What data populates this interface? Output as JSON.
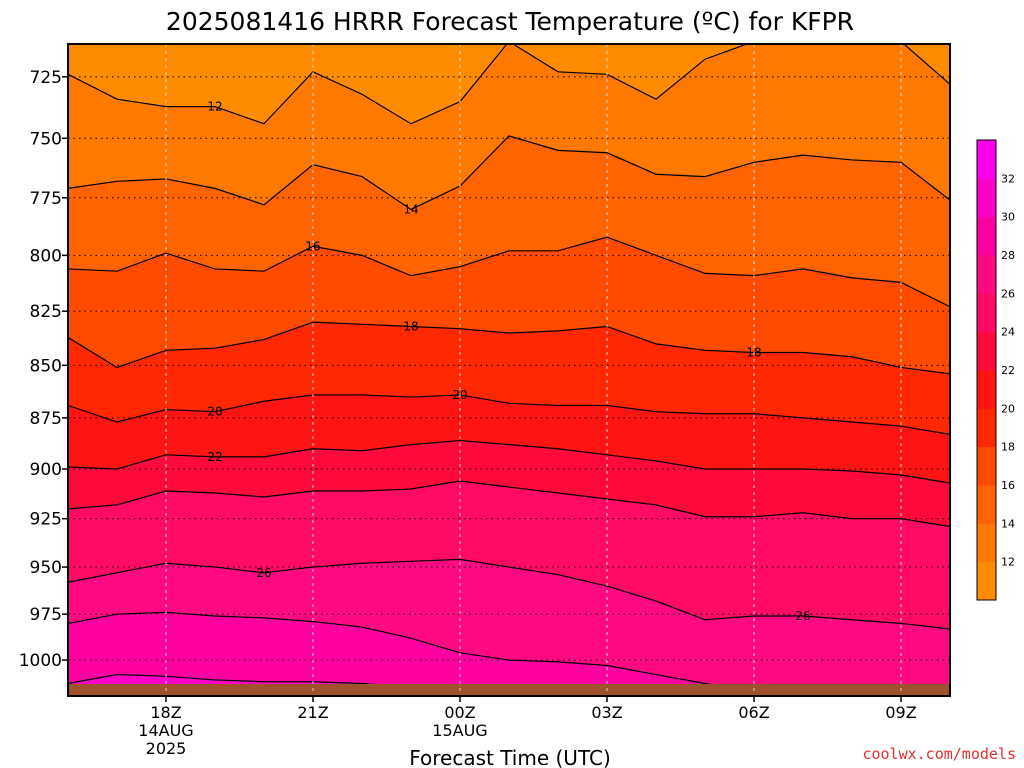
{
  "chart_data": {
    "type": "heatmap",
    "title": "2025081416 HRRR Forecast Temperature (ºC) for KFPR",
    "xlabel": "Forecast Time (UTC)",
    "ylabel": "",
    "y_axis": {
      "quantity": "pressure (hPa)",
      "scale": "log",
      "inverted": true,
      "ticks": [
        725,
        750,
        775,
        800,
        825,
        850,
        875,
        900,
        925,
        950,
        975,
        1000
      ],
      "range": [
        1020,
        712
      ]
    },
    "x_axis": {
      "range": [
        "2025-08-14 16Z",
        "2025-08-15 10Z"
      ],
      "ticks": [
        {
          "hour": 18,
          "label": "18Z",
          "label2": "14AUG",
          "label3": "2025"
        },
        {
          "hour": 21,
          "label": "21Z",
          "label2": "",
          "label3": ""
        },
        {
          "hour": 24,
          "label": "00Z",
          "label2": "15AUG",
          "label3": ""
        },
        {
          "hour": 27,
          "label": "03Z",
          "label2": "",
          "label3": ""
        },
        {
          "hour": 30,
          "label": "06Z",
          "label2": "",
          "label3": ""
        },
        {
          "hour": 33,
          "label": "09Z",
          "label2": "",
          "label3": ""
        }
      ]
    },
    "grid": true,
    "colorbar": {
      "placement": "right",
      "levels": [
        12,
        14,
        16,
        18,
        20,
        22,
        24,
        26,
        28,
        30,
        32
      ],
      "colors": [
        "#FF8C00",
        "#FF7800",
        "#FF6400",
        "#FF4B00",
        "#FF2800",
        "#FF1414",
        "#FF0A3C",
        "#FF0A64",
        "#FF0A82",
        "#FF00A0",
        "#FF00C8",
        "#FF00EE"
      ]
    },
    "x_hours": [
      16,
      17,
      18,
      19,
      20,
      21,
      22,
      23,
      24,
      25,
      26,
      27,
      28,
      29,
      30,
      31,
      32,
      33,
      34
    ],
    "isotherms": [
      {
        "value": 12,
        "pressure": [
          724,
          734,
          737,
          737,
          744,
          723,
          732,
          744,
          735,
          711,
          723,
          724,
          734,
          718,
          711,
          711,
          711,
          711,
          728
        ]
      },
      {
        "value": 14,
        "pressure": [
          771,
          768,
          767,
          771,
          778,
          761,
          766,
          780,
          770,
          749,
          755,
          756,
          765,
          766,
          760,
          757,
          759,
          760,
          776
        ]
      },
      {
        "value": 16,
        "pressure": [
          806,
          807,
          799,
          806,
          807,
          796,
          800,
          809,
          805,
          798,
          798,
          792,
          800,
          808,
          809,
          806,
          810,
          812,
          823
        ]
      },
      {
        "value": 18,
        "pressure": [
          837,
          851,
          843,
          842,
          838,
          830,
          831,
          832,
          833,
          835,
          834,
          832,
          840,
          843,
          844,
          844,
          846,
          851,
          854
        ]
      },
      {
        "value": 20,
        "pressure": [
          869,
          877,
          871,
          872,
          867,
          864,
          864,
          865,
          864,
          868,
          869,
          869,
          872,
          873,
          873,
          875,
          877,
          879,
          883
        ]
      },
      {
        "value": 22,
        "pressure": [
          899,
          900,
          893,
          894,
          894,
          890,
          891,
          888,
          886,
          888,
          890,
          893,
          896,
          900,
          900,
          900,
          901,
          903,
          907
        ]
      },
      {
        "value": 24,
        "pressure": [
          920,
          918,
          911,
          912,
          914,
          911,
          911,
          910,
          906,
          909,
          912,
          915,
          918,
          924,
          924,
          922,
          925,
          925,
          929
        ]
      },
      {
        "value": 26,
        "pressure": [
          958,
          953,
          948,
          950,
          953,
          950,
          948,
          947,
          946,
          950,
          954,
          960,
          968,
          978,
          976,
          976,
          978,
          980,
          983
        ]
      },
      {
        "value": 28,
        "pressure": [
          980,
          975,
          974,
          976,
          977,
          979,
          982,
          988,
          996,
          1000,
          1001,
          1003,
          1008,
          1013,
          1017,
          1020,
          1020,
          1020,
          1020
        ]
      },
      {
        "value": 30,
        "pressure": [
          1013,
          1008,
          1009,
          1011,
          1012,
          1012,
          1013,
          1015,
          1020,
          1020,
          1020,
          1020,
          1020,
          1020,
          1020,
          1020,
          1020,
          1020,
          1020
        ]
      },
      {
        "value": 32,
        "pressure": [
          1020,
          1018,
          1018,
          1019,
          1019,
          1020,
          1020,
          1020,
          1020,
          1020,
          1020,
          1020,
          1020,
          1020,
          1020,
          1020,
          1020,
          1020,
          1020
        ]
      }
    ],
    "contour_labels": [
      {
        "text": "12",
        "hour": 19,
        "pressure": 737
      },
      {
        "text": "14",
        "hour": 23,
        "pressure": 780
      },
      {
        "text": "16",
        "hour": 21,
        "pressure": 796
      },
      {
        "text": "18",
        "hour": 23,
        "pressure": 832
      },
      {
        "text": "18",
        "hour": 30,
        "pressure": 844
      },
      {
        "text": "20",
        "hour": 19,
        "pressure": 872
      },
      {
        "text": "20",
        "hour": 24,
        "pressure": 864
      },
      {
        "text": "22",
        "hour": 19,
        "pressure": 894
      },
      {
        "text": "26",
        "hour": 20,
        "pressure": 953
      },
      {
        "text": "26",
        "hour": 31,
        "pressure": 976
      }
    ],
    "terrain_color": "#A0522D"
  },
  "credit": "coolwx.com/models"
}
